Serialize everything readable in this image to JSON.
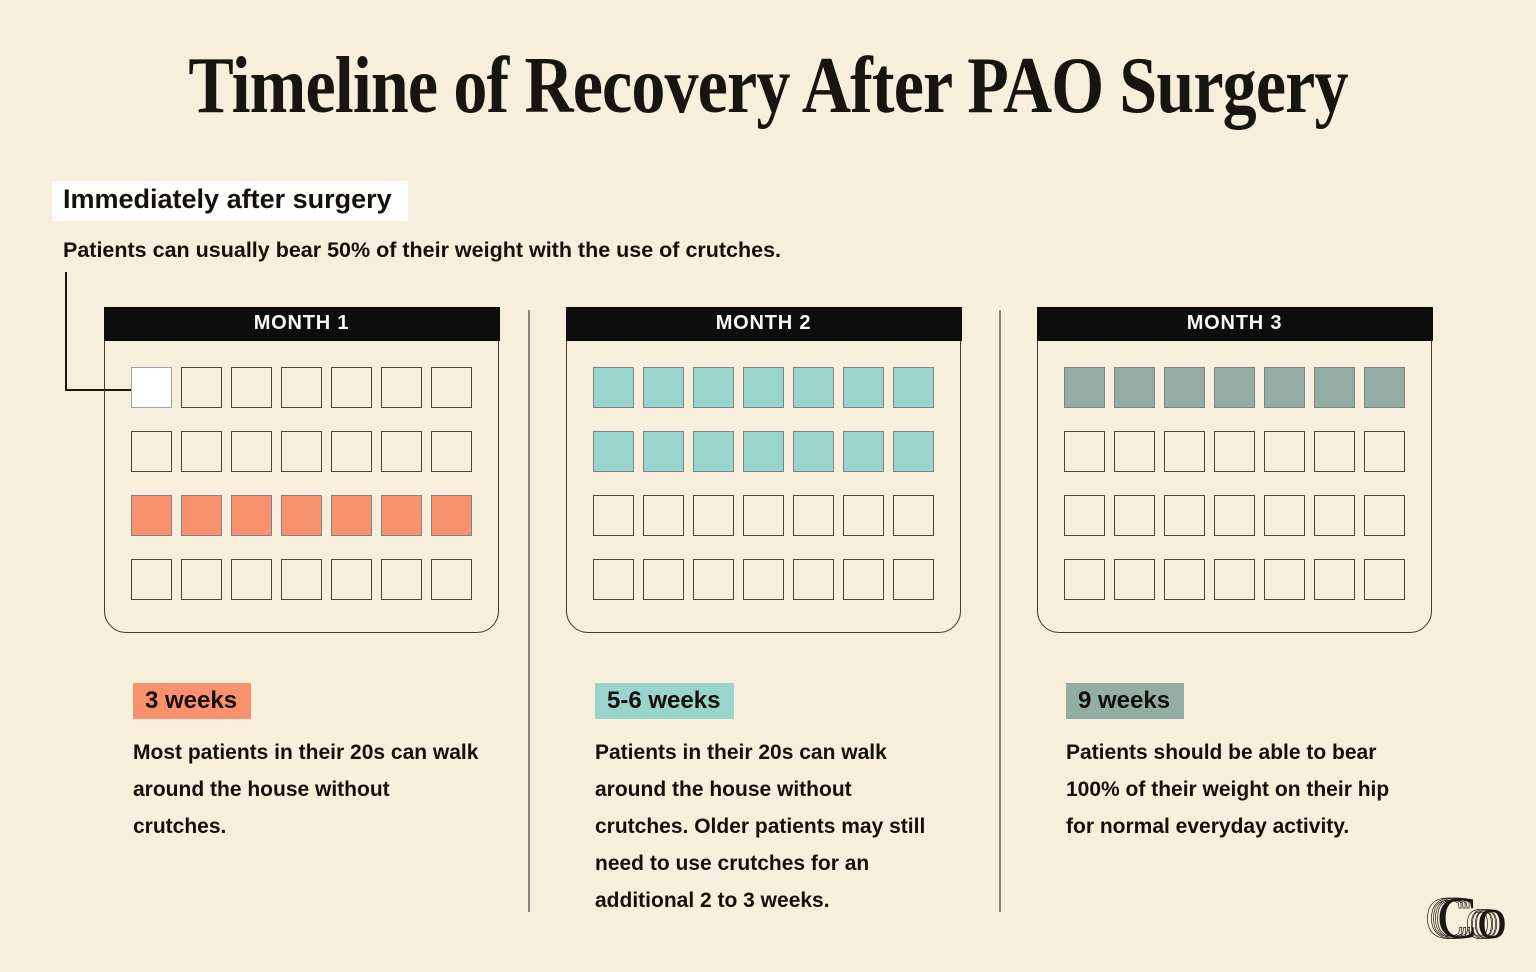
{
  "title": "Timeline of Recovery After PAO Surgery",
  "callout": {
    "label": "Immediately after surgery",
    "text": "Patients can usually bear 50% of their weight with the use of crutches."
  },
  "months": [
    {
      "header": "MONTH 1",
      "badge": "3 weeks",
      "accent": "#F9906E",
      "description": "Most patients in their 20s can walk around the house without crutches.",
      "cells": [
        "marker",
        "plain",
        "plain",
        "plain",
        "plain",
        "plain",
        "plain",
        "plain",
        "plain",
        "plain",
        "plain",
        "plain",
        "plain",
        "plain",
        "filled",
        "filled",
        "filled",
        "filled",
        "filled",
        "filled",
        "filled",
        "plain",
        "plain",
        "plain",
        "plain",
        "plain",
        "plain",
        "plain"
      ]
    },
    {
      "header": "MONTH 2",
      "badge": "5-6 weeks",
      "accent": "#99D5CD",
      "description": "Patients in their 20s can walk around the house without crutches. Older patients may still need to use crutches for an additional 2 to 3 weeks.",
      "cells": [
        "filled",
        "filled",
        "filled",
        "filled",
        "filled",
        "filled",
        "filled",
        "filled",
        "filled",
        "filled",
        "filled",
        "filled",
        "filled",
        "filled",
        "plain",
        "plain",
        "plain",
        "plain",
        "plain",
        "plain",
        "plain",
        "plain",
        "plain",
        "plain",
        "plain",
        "plain",
        "plain",
        "plain"
      ]
    },
    {
      "header": "MONTH 3",
      "badge": "9 weeks",
      "accent": "#93ADA5",
      "description": "Patients should be able to bear 100% of their weight on their hip for normal everyday activity.",
      "cells": [
        "filled",
        "filled",
        "filled",
        "filled",
        "filled",
        "filled",
        "filled",
        "plain",
        "plain",
        "plain",
        "plain",
        "plain",
        "plain",
        "plain",
        "plain",
        "plain",
        "plain",
        "plain",
        "plain",
        "plain",
        "plain",
        "plain",
        "plain",
        "plain",
        "plain",
        "plain",
        "plain",
        "plain"
      ]
    }
  ],
  "logo": {
    "monogram": "Co"
  },
  "colors": {
    "background": "#F8EEDC",
    "header_bar": "#0D0D0D",
    "text": "#14110D",
    "salmon": "#F9906E",
    "teal": "#99D5CD",
    "sage": "#93ADA5",
    "plain_cell_border": "#4A463E",
    "filled_cell_border": "#7C838B",
    "marker_cell_border": "#9BA3AC",
    "divider": "#8A857C"
  }
}
